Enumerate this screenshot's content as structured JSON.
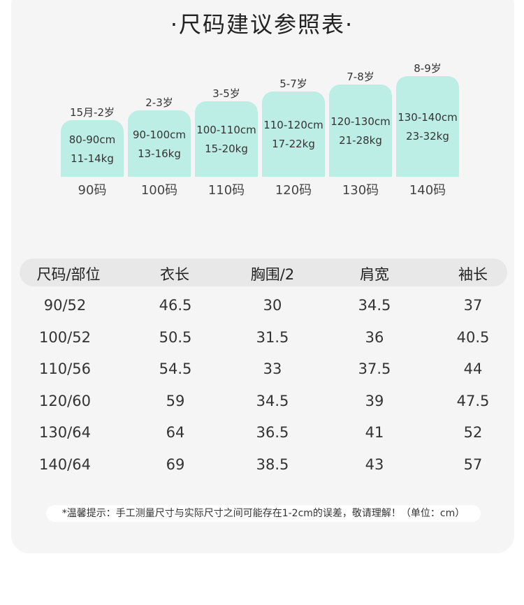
{
  "title": "·尺码建议参照表·",
  "size_guide": [
    {
      "age": "15月-2岁",
      "height": "80-90cm",
      "weight": "11-14kg",
      "size": "90码"
    },
    {
      "age": "2-3岁",
      "height": "90-100cm",
      "weight": "13-16kg",
      "size": "100码"
    },
    {
      "age": "3-5岁",
      "height": "100-110cm",
      "weight": "15-20kg",
      "size": "110码"
    },
    {
      "age": "5-7岁",
      "height": "110-120cm",
      "weight": "17-22kg",
      "size": "120码"
    },
    {
      "age": "7-8岁",
      "height": "120-130cm",
      "weight": "21-28kg",
      "size": "130码"
    },
    {
      "age": "8-9岁",
      "height": "130-140cm",
      "weight": "23-32kg",
      "size": "140码"
    }
  ],
  "table": {
    "headers": [
      "尺码/部位",
      "衣长",
      "胸围/2",
      "肩宽",
      "袖长"
    ],
    "rows": [
      [
        "90/52",
        "46.5",
        "30",
        "34.5",
        "37"
      ],
      [
        "100/52",
        "50.5",
        "31.5",
        "36",
        "40.5"
      ],
      [
        "110/56",
        "54.5",
        "33",
        "37.5",
        "44"
      ],
      [
        "120/60",
        "59",
        "34.5",
        "39",
        "47.5"
      ],
      [
        "130/64",
        "64",
        "36.5",
        "41",
        "52"
      ],
      [
        "140/64",
        "69",
        "38.5",
        "43",
        "57"
      ]
    ]
  },
  "tip": "*温馨提示：手工测量尺寸与实际尺寸之间可能存在1-2cm的误差，敬请理解！（单位：cm）",
  "colors": {
    "bar": "#bdeee6",
    "card": "#f5f5f5",
    "header": "#e8e8e8"
  }
}
